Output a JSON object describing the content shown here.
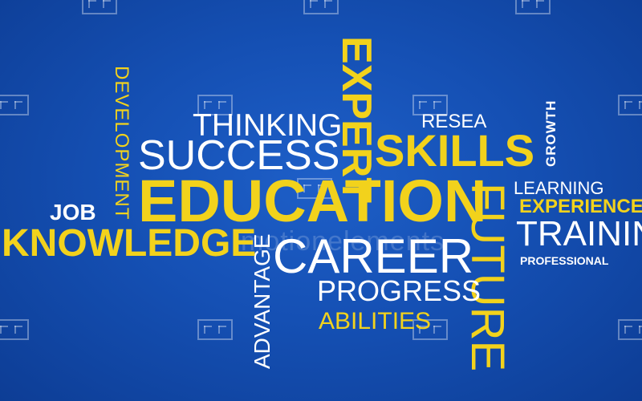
{
  "words": {
    "development": "DEVELOPMENT",
    "expert": "EXPERT",
    "thinking": "THINKING",
    "resea": "RESEA",
    "growth": "GROWTH",
    "success": "SUCCESS",
    "skills": "SKILLS",
    "learning": "LEARNING",
    "education": "EDUCATION",
    "future": "FUTURE",
    "experience": "EXPERIENCE",
    "job": "JOB",
    "knowledge": "KNOWLEDGE",
    "training": "TRAINING",
    "career": "CAREER",
    "professional": "PROFESSIONAL",
    "advantage": "ADVANTAGE",
    "progress": "PROGRESS",
    "abilities": "ABILITIES"
  },
  "watermark": {
    "text": "motionelements"
  },
  "colors": {
    "background": "#1550b4",
    "yellow": "#f2d21c",
    "white": "#ffffff"
  }
}
